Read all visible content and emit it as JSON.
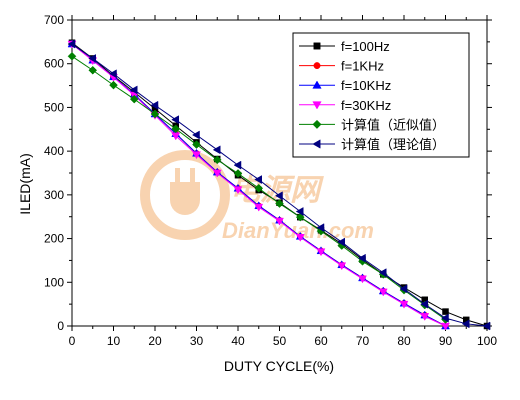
{
  "chart_data": {
    "type": "line",
    "title": "",
    "xlabel": "DUTY CYCLE(%)",
    "ylabel": "ILED(mA)",
    "xlim": [
      0,
      100
    ],
    "ylim": [
      0,
      700
    ],
    "xticks": [
      0,
      10,
      20,
      30,
      40,
      50,
      60,
      70,
      80,
      90,
      100
    ],
    "yticks": [
      0,
      100,
      200,
      300,
      400,
      500,
      600,
      700
    ],
    "grid": false,
    "legend_position": "top-right",
    "x": [
      0,
      5,
      10,
      15,
      20,
      25,
      30,
      35,
      40,
      45,
      50,
      55,
      60,
      65,
      70,
      75,
      80,
      85,
      90,
      95,
      100
    ],
    "series": [
      {
        "name": "f=100Hz",
        "color": "#000000",
        "marker": "square",
        "values": [
          648,
          612,
          572,
          535,
          497,
          458,
          420,
          382,
          345,
          311,
          282,
          249,
          219,
          188,
          152,
          118,
          88,
          60,
          33,
          14,
          0
        ]
      },
      {
        "name": "f=1KHz",
        "color": "#ff0000",
        "marker": "circle",
        "values": [
          645,
          608,
          570,
          530,
          485,
          440,
          395,
          352,
          315,
          275,
          242,
          205,
          172,
          140,
          110,
          80,
          52,
          25,
          0,
          null,
          null
        ]
      },
      {
        "name": "f=10KHz",
        "color": "#0000ff",
        "marker": "triangle-up",
        "values": [
          645,
          608,
          570,
          530,
          485,
          440,
          395,
          352,
          315,
          275,
          242,
          205,
          172,
          140,
          110,
          80,
          52,
          25,
          0,
          null,
          null
        ]
      },
      {
        "name": "f=30KHz",
        "color": "#ff00ff",
        "marker": "triangle-down",
        "values": [
          645,
          607,
          569,
          528,
          482,
          435,
          392,
          350,
          312,
          272,
          240,
          203,
          170,
          138,
          108,
          78,
          50,
          22,
          0,
          null,
          null
        ]
      },
      {
        "name": "计算值（近似值）",
        "color": "#008000",
        "marker": "diamond",
        "values": [
          617,
          585,
          551,
          519,
          485,
          451,
          415,
          380,
          349,
          315,
          280,
          249,
          217,
          184,
          148,
          118,
          82,
          48,
          15,
          null,
          null
        ]
      },
      {
        "name": "计算值（理论值）",
        "color": "#000080",
        "marker": "triangle-left",
        "values": [
          645,
          612,
          577,
          540,
          505,
          472,
          437,
          403,
          368,
          335,
          298,
          262,
          225,
          192,
          155,
          122,
          85,
          50,
          18,
          5,
          0
        ]
      }
    ]
  },
  "watermark": {
    "cn_text": "电源网",
    "url_text": "DianYuan.com",
    "color": "#f0a050"
  }
}
